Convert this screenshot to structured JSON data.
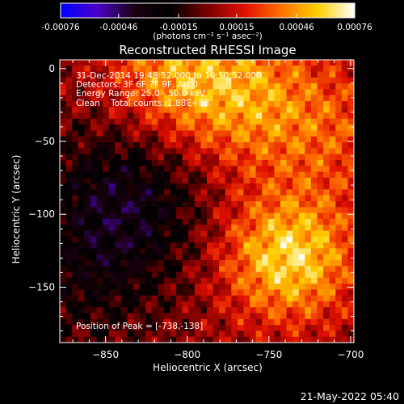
{
  "colorbar": {
    "ticks": [
      "-0.00076",
      "-0.00046",
      "-0.00015",
      "0.00015",
      "0.00046",
      "0.00076"
    ],
    "tick_values": [
      -0.00076,
      -0.00046,
      -0.00015,
      0.00015,
      0.00046,
      0.00076
    ],
    "unit": "(photons cm⁻² s⁻¹ asec⁻²)",
    "range": [
      -0.00076,
      0.00076
    ],
    "colors": [
      "#0000ff",
      "#4a00c8",
      "#1a0010",
      "#000000",
      "#7a0000",
      "#e01000",
      "#ff7000",
      "#ffd000",
      "#ffffff"
    ]
  },
  "chart_data": {
    "type": "heatmap",
    "title": "Reconstructed RHESSI Image",
    "xlabel": "Heliocentric X (arcsec)",
    "ylabel": "Heliocentric Y (arcsec)",
    "xlim": [
      -878,
      -698
    ],
    "ylim": [
      -188,
      6
    ],
    "x_ticks": [
      -850,
      -800,
      -750,
      -700
    ],
    "y_ticks": [
      0,
      -50,
      -100,
      -150
    ],
    "x_tick_labels": [
      "−850",
      "−800",
      "−750",
      "−700"
    ],
    "y_tick_labels": [
      "0",
      "−50",
      "−100",
      "−150"
    ],
    "peak": [
      -738,
      -138
    ]
  },
  "annotations": {
    "time": "31-Dec-2014 19:48:52.000 to 19:50:52.000",
    "detectors": "Detectors: 3F 6F 7F 9F, Att 0",
    "energy": "Energy Range: 25.0 - 50.0 keV",
    "clean": "Clean    Total counts: 1.88E+03",
    "peak_label": "Position of Peak = [-738,-138]"
  },
  "footer": {
    "timestamp": "21-May-2022 05:40"
  }
}
